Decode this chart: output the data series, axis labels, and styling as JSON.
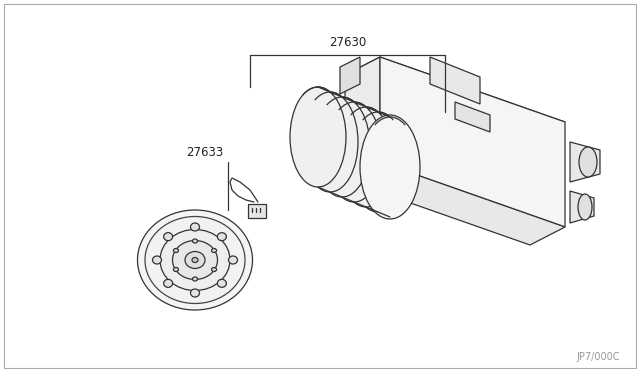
{
  "background_color": "#ffffff",
  "line_color": "#333333",
  "label_27630": "27630",
  "label_27633": "27633",
  "part_code": "JP7/000C",
  "fig_width": 6.4,
  "fig_height": 3.72,
  "dpi": 100
}
